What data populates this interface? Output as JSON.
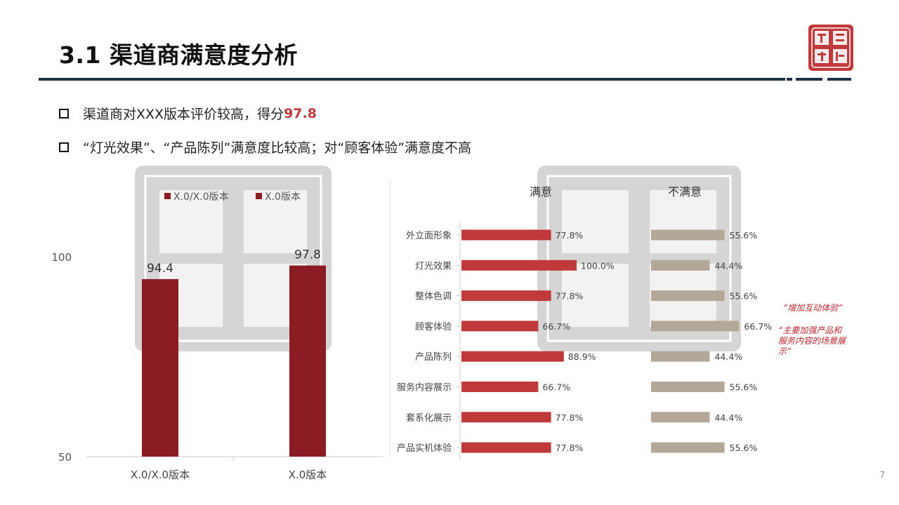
{
  "title": "3.1 渠道商满意度分析",
  "bullets": [
    {
      "text": "渠道商对XXX版本评价较高，得分",
      "highlight": "97.8"
    },
    {
      "text": "“灯光效果”、“产品陈列”满意度比较高；对“顾客体验”满意度不高",
      "highlight": ""
    }
  ],
  "logo": {
    "text": "赛岩咨询",
    "color": "#c0393b"
  },
  "page_number": "7",
  "annotations": [
    "“增加互动体验”",
    "“主要加强产品和服务内容的场景展示”"
  ],
  "colors": {
    "dark_red": "#8b1c23",
    "red": "#c0393b",
    "tan": "#b3a898",
    "navy": "#1f2f45"
  },
  "chart_data": [
    {
      "type": "bar",
      "categories": [
        "X.0/X.0版本",
        "X.0版本"
      ],
      "values": [
        94.4,
        97.8
      ],
      "legend": [
        "X.0/X.0版本",
        "X.0版本"
      ],
      "legend_position": "top",
      "ylim": [
        50,
        100
      ],
      "yticks": [
        "50",
        "100"
      ],
      "grid": false
    },
    {
      "type": "bar",
      "orientation": "horizontal",
      "categories": [
        "外立面形象",
        "灯光效果",
        "整体色调",
        "顾客体验",
        "产品陈列",
        "服务内容展示",
        "套系化展示",
        "产品实机体验"
      ],
      "series": [
        {
          "name": "满意",
          "values": [
            77.8,
            100.0,
            77.8,
            66.7,
            88.9,
            66.7,
            77.8,
            77.8
          ],
          "labels": [
            "77.8%",
            "100.0%",
            "77.8%",
            "66.7%",
            "88.9%",
            "66.7%",
            "77.8%",
            "77.8%"
          ],
          "color": "#c0393b"
        },
        {
          "name": "不满意",
          "values": [
            55.6,
            44.4,
            55.6,
            66.7,
            44.4,
            55.6,
            44.4,
            55.6
          ],
          "labels": [
            "55.6%",
            "44.4%",
            "55.6%",
            "66.7%",
            "44.4%",
            "55.6%",
            "44.4%",
            "55.6%"
          ],
          "color": "#b3a898"
        }
      ],
      "xlim": [
        0,
        100
      ],
      "grid": false
    }
  ]
}
